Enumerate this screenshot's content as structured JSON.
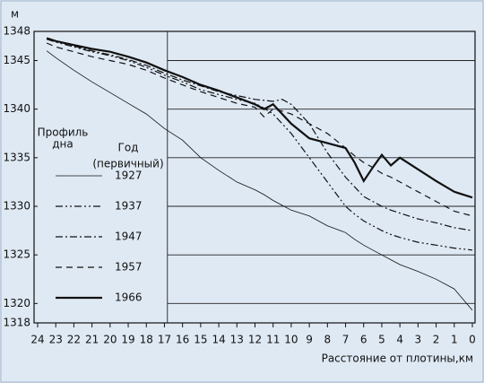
{
  "chart_data": {
    "type": "line",
    "y_unit": "м",
    "xlabel": "Расстояние от плотины,км",
    "legend_header_left": [
      "Профиль",
      "дна"
    ],
    "legend_header_right": [
      "Год",
      "(первичный)"
    ],
    "x": [
      23.5,
      23,
      22,
      21,
      20,
      19,
      18,
      17,
      16,
      15,
      14,
      13,
      12,
      11.5,
      11,
      10.5,
      10,
      9,
      8,
      7,
      6.5,
      6,
      5.5,
      5,
      4.5,
      4,
      3,
      2,
      1,
      0
    ],
    "xlim": [
      24,
      0
    ],
    "xticks": [
      24,
      23,
      22,
      21,
      20,
      19,
      18,
      17,
      16,
      15,
      14,
      13,
      12,
      11,
      10,
      9,
      8,
      7,
      6,
      5,
      4,
      3,
      2,
      1,
      0
    ],
    "ylim": [
      1318,
      1348
    ],
    "yticks": [
      1318,
      1320,
      1325,
      1330,
      1335,
      1340,
      1345,
      1348
    ],
    "grid": true,
    "series": [
      {
        "name": "1927",
        "color": "#111111",
        "style": "solid",
        "width": 0.8,
        "values": [
          1346,
          1345.3,
          1344,
          1342.8,
          1341.7,
          1340.6,
          1339.5,
          1338,
          1336.8,
          1335,
          1333.7,
          1332.5,
          1331.7,
          1331.2,
          1330.6,
          1330.1,
          1329.6,
          1329,
          1328,
          1327.3,
          1326.6,
          1326,
          1325.5,
          1325,
          1324.5,
          1324,
          1323.3,
          1322.5,
          1321.5,
          1319.3
        ]
      },
      {
        "name": "1937",
        "color": "#111111",
        "style": "dashdotdot",
        "width": 1.2,
        "values": [
          1347.2,
          1346.9,
          1346.4,
          1345.9,
          1345.5,
          1345,
          1344.3,
          1343.5,
          1342.8,
          1342,
          1341.5,
          1341,
          1340.6,
          1340.1,
          1339.5,
          1338.5,
          1337.5,
          1335,
          1332.5,
          1330,
          1329.2,
          1328.5,
          1328,
          1327.5,
          1327.1,
          1326.8,
          1326.3,
          1326,
          1325.7,
          1325.5
        ]
      },
      {
        "name": "1947",
        "color": "#111111",
        "style": "dashdot",
        "width": 1.2,
        "values": [
          1347.2,
          1347,
          1346.5,
          1346,
          1345.6,
          1345.1,
          1344.5,
          1343.7,
          1343,
          1342.4,
          1341.8,
          1341.4,
          1341,
          1340.9,
          1340.8,
          1341,
          1340.5,
          1338.5,
          1335.5,
          1333,
          1332,
          1331,
          1330.5,
          1330,
          1329.6,
          1329.3,
          1328.7,
          1328.3,
          1327.8,
          1327.5
        ]
      },
      {
        "name": "1957",
        "color": "#111111",
        "style": "dashed",
        "width": 1.2,
        "values": [
          1346.8,
          1346.4,
          1345.9,
          1345.4,
          1345,
          1344.6,
          1344,
          1343.2,
          1342.5,
          1341.8,
          1341.2,
          1340.6,
          1340.2,
          1339.2,
          1340,
          1339.8,
          1339.5,
          1338.5,
          1337.5,
          1336,
          1335.2,
          1334.5,
          1334,
          1333.4,
          1333,
          1332.5,
          1331.5,
          1330.5,
          1329.5,
          1329
        ]
      },
      {
        "name": "1966",
        "color": "#111111",
        "style": "solid",
        "width": 2.2,
        "values": [
          1347.3,
          1347,
          1346.6,
          1346.2,
          1345.9,
          1345.4,
          1344.8,
          1344,
          1343.3,
          1342.5,
          1341.9,
          1341.2,
          1340.5,
          1340,
          1340.5,
          1339.5,
          1338.5,
          1337,
          1336.5,
          1336,
          1334.5,
          1332.6,
          1334,
          1335.3,
          1334.2,
          1335,
          1333.8,
          1332.6,
          1331.5,
          1330.9
        ]
      }
    ]
  }
}
